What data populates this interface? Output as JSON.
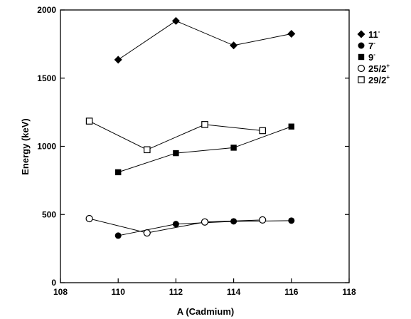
{
  "chart_data": {
    "type": "line",
    "xlabel": "A (Cadmium)",
    "ylabel": "Energy (keV)",
    "xlim": [
      108,
      118
    ],
    "ylim": [
      0,
      2000
    ],
    "xticks": [
      108,
      110,
      112,
      114,
      116,
      118
    ],
    "yticks": [
      0,
      500,
      1000,
      1500,
      2000
    ],
    "grid": false,
    "legend_position": "right",
    "series": [
      {
        "name": "11",
        "sup": "-",
        "marker": "diamond-filled",
        "x": [
          110,
          112,
          114,
          116
        ],
        "y": [
          1635,
          1920,
          1740,
          1825
        ]
      },
      {
        "name": "7",
        "sup": "-",
        "marker": "circle-filled",
        "x": [
          110,
          112,
          114,
          116
        ],
        "y": [
          345,
          430,
          450,
          455
        ]
      },
      {
        "name": "9",
        "sup": "-",
        "marker": "square-filled",
        "x": [
          110,
          112,
          114,
          116
        ],
        "y": [
          810,
          950,
          990,
          1145
        ]
      },
      {
        "name": "25/2",
        "sup": "+",
        "marker": "circle-open",
        "x": [
          109,
          111,
          113,
          115
        ],
        "y": [
          470,
          365,
          445,
          460
        ]
      },
      {
        "name": "29/2",
        "sup": "+",
        "marker": "square-open",
        "x": [
          109,
          111,
          113,
          115
        ],
        "y": [
          1185,
          975,
          1160,
          1115
        ]
      }
    ]
  }
}
